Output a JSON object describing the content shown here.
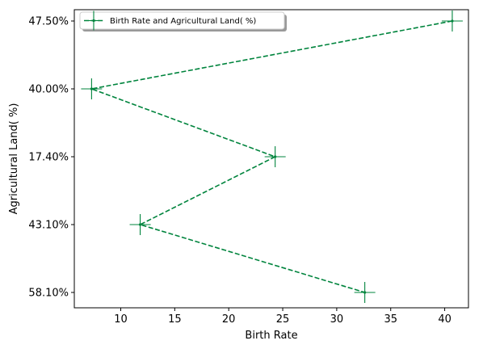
{
  "chart_data": {
    "type": "line",
    "xlabel": "Birth Rate",
    "ylabel": "Agricultural Land( %)",
    "y_categories": [
      "58.10%",
      "43.10%",
      "17.40%",
      "40.00%",
      "47.50%"
    ],
    "xlim": [
      5.7,
      42.2
    ],
    "x_ticks": [
      10,
      15,
      20,
      25,
      30,
      35,
      40
    ],
    "series": [
      {
        "name": "Birth Rate and Agricultural Land( %)",
        "color": "#00843d",
        "line_style": "dashed",
        "marker": "plus",
        "points": [
          {
            "x": 40.7,
            "y": "47.50%"
          },
          {
            "x": 7.3,
            "y": "40.00%"
          },
          {
            "x": 24.3,
            "y": "17.40%"
          },
          {
            "x": 11.8,
            "y": "43.10%"
          },
          {
            "x": 32.6,
            "y": "58.10%"
          }
        ]
      }
    ],
    "legend_position": "top-left",
    "grid": false
  }
}
